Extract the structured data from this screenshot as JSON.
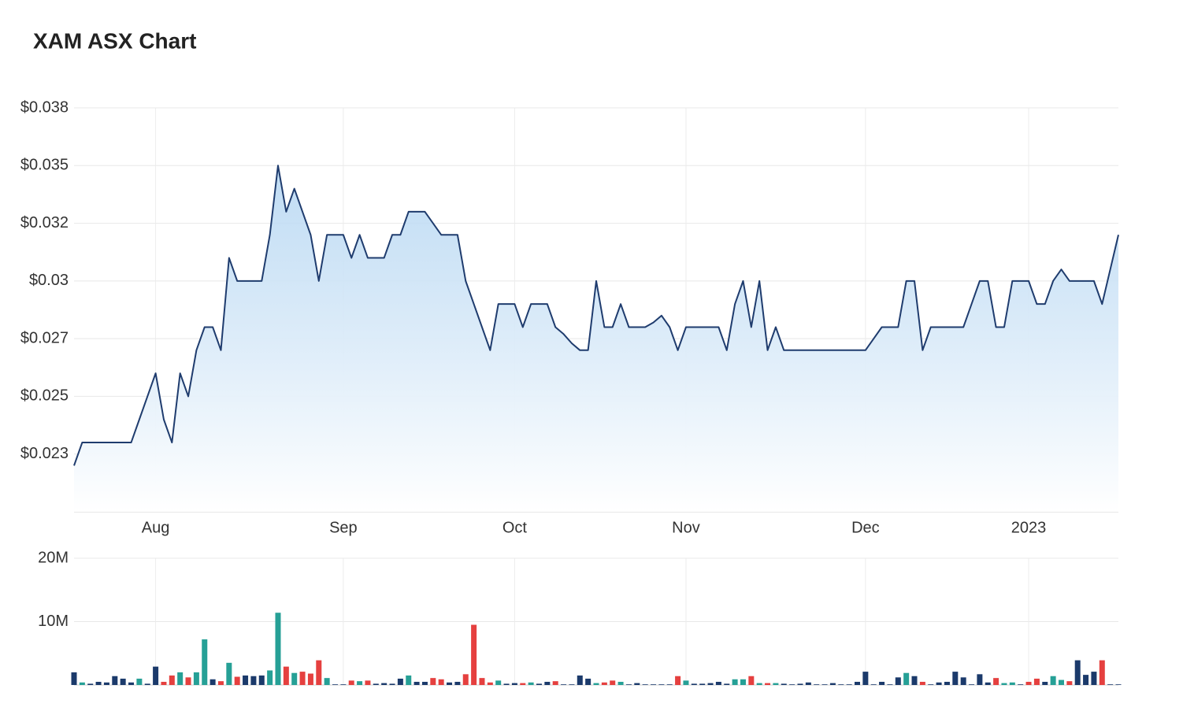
{
  "title": "XAM ASX Chart",
  "chart_data": [
    {
      "type": "area",
      "categories": [
        null,
        null,
        null,
        null,
        null,
        null,
        null,
        null,
        null,
        null,
        "Aug",
        null,
        null,
        null,
        null,
        null,
        null,
        null,
        null,
        null,
        null,
        null,
        null,
        null,
        null,
        null,
        null,
        null,
        null,
        null,
        null,
        null,
        null,
        "Sep",
        null,
        null,
        null,
        null,
        null,
        null,
        null,
        null,
        null,
        null,
        null,
        null,
        null,
        null,
        null,
        null,
        null,
        null,
        null,
        null,
        "Oct",
        null,
        null,
        null,
        null,
        null,
        null,
        null,
        null,
        null,
        null,
        null,
        null,
        null,
        null,
        null,
        null,
        null,
        null,
        null,
        null,
        "Nov",
        null,
        null,
        null,
        null,
        null,
        null,
        null,
        null,
        null,
        null,
        null,
        null,
        null,
        null,
        null,
        null,
        null,
        null,
        null,
        null,
        null,
        "Dec",
        null,
        null,
        null,
        null,
        null,
        null,
        null,
        null,
        null,
        null,
        null,
        null,
        null,
        null,
        null,
        null,
        null,
        null,
        null,
        "2023",
        null,
        null,
        null,
        null,
        null,
        null,
        null,
        null,
        null,
        null,
        null
      ],
      "values": [
        0.022,
        0.023,
        0.023,
        0.023,
        0.023,
        0.023,
        0.023,
        0.023,
        0.024,
        0.025,
        0.026,
        0.024,
        0.023,
        0.026,
        0.025,
        0.027,
        0.028,
        0.028,
        0.027,
        0.031,
        0.03,
        0.03,
        0.03,
        0.03,
        0.032,
        0.035,
        0.033,
        0.034,
        0.033,
        0.032,
        0.03,
        0.032,
        0.032,
        0.032,
        0.031,
        0.032,
        0.031,
        0.031,
        0.031,
        0.032,
        0.032,
        0.033,
        0.033,
        0.033,
        0.0325,
        0.032,
        0.032,
        0.032,
        0.03,
        0.029,
        0.028,
        0.027,
        0.029,
        0.029,
        0.029,
        0.028,
        0.029,
        0.029,
        0.029,
        0.028,
        0.0277,
        0.0273,
        0.027,
        0.027,
        0.03,
        0.028,
        0.028,
        0.029,
        0.028,
        0.028,
        0.028,
        0.0282,
        0.0285,
        0.028,
        0.027,
        0.028,
        0.028,
        0.028,
        0.028,
        0.028,
        0.027,
        0.029,
        0.03,
        0.028,
        0.03,
        0.027,
        0.028,
        0.027,
        0.027,
        0.027,
        0.027,
        0.027,
        0.027,
        0.027,
        0.027,
        0.027,
        0.027,
        0.027,
        0.0275,
        0.028,
        0.028,
        0.028,
        0.03,
        0.03,
        0.027,
        0.028,
        0.028,
        0.028,
        0.028,
        0.028,
        0.029,
        0.03,
        0.03,
        0.028,
        0.028,
        0.03,
        0.03,
        0.03,
        0.029,
        0.029,
        0.03,
        0.0305,
        0.03,
        0.03,
        0.03,
        0.03,
        0.029,
        0.0305,
        0.032
      ],
      "color": "#1f3c6e",
      "fill_color": "#b5d6f2",
      "ylim": [
        0.02,
        0.0375
      ],
      "yticks": [
        {
          "value": 0.0225,
          "label": "$0.023"
        },
        {
          "value": 0.025,
          "label": "$0.025"
        },
        {
          "value": 0.0275,
          "label": "$0.027"
        },
        {
          "value": 0.03,
          "label": "$0.03"
        },
        {
          "value": 0.0325,
          "label": "$0.032"
        },
        {
          "value": 0.035,
          "label": "$0.035"
        },
        {
          "value": 0.0375,
          "label": "$0.038"
        }
      ],
      "grid": true
    },
    {
      "type": "bar",
      "values": [
        2000000,
        400000,
        200000,
        500000,
        400000,
        1400000,
        1000000,
        400000,
        1000000,
        200000,
        2900000,
        500000,
        1500000,
        2000000,
        1200000,
        2000000,
        7200000,
        900000,
        600000,
        3500000,
        1300000,
        1500000,
        1400000,
        1500000,
        2300000,
        11400000,
        2900000,
        1900000,
        2100000,
        1800000,
        3900000,
        1100000,
        100000,
        100000,
        700000,
        600000,
        700000,
        200000,
        300000,
        200000,
        1000000,
        1500000,
        500000,
        500000,
        1100000,
        900000,
        400000,
        500000,
        1700000,
        9500000,
        1100000,
        400000,
        700000,
        200000,
        300000,
        300000,
        400000,
        200000,
        500000,
        600000,
        100000,
        100000,
        1500000,
        1000000,
        300000,
        400000,
        700000,
        500000,
        100000,
        300000,
        100000,
        100000,
        100000,
        100000,
        1400000,
        700000,
        200000,
        200000,
        300000,
        500000,
        200000,
        900000,
        900000,
        1400000,
        300000,
        300000,
        300000,
        200000,
        100000,
        200000,
        400000,
        100000,
        100000,
        300000,
        100000,
        100000,
        500000,
        2100000,
        100000,
        500000,
        100000,
        1200000,
        1900000,
        1400000,
        500000,
        100000,
        400000,
        500000,
        2100000,
        1200000,
        100000,
        1700000,
        400000,
        1100000,
        300000,
        400000,
        100000,
        500000,
        1000000,
        500000,
        1400000,
        800000,
        600000,
        3900000,
        1600000,
        2100000,
        3900000,
        100000,
        100000
      ],
      "colors": [
        "#1b3a6b",
        "#26a096",
        "#1b3a6b",
        "#1b3a6b",
        "#1b3a6b",
        "#1b3a6b",
        "#1b3a6b",
        "#1b3a6b",
        "#26a096",
        "#1b3a6b",
        "#1b3a6b",
        "#e5403f",
        "#e5403f",
        "#26a096",
        "#e5403f",
        "#26a096",
        "#26a096",
        "#1b3a6b",
        "#e5403f",
        "#26a096",
        "#e5403f",
        "#1b3a6b",
        "#1b3a6b",
        "#1b3a6b",
        "#26a096",
        "#26a096",
        "#e5403f",
        "#26a096",
        "#e5403f",
        "#e5403f",
        "#e5403f",
        "#26a096",
        "#1b3a6b",
        "#1b3a6b",
        "#e5403f",
        "#26a096",
        "#e5403f",
        "#1b3a6b",
        "#1b3a6b",
        "#1b3a6b",
        "#1b3a6b",
        "#26a096",
        "#1b3a6b",
        "#1b3a6b",
        "#e5403f",
        "#e5403f",
        "#1b3a6b",
        "#1b3a6b",
        "#e5403f",
        "#e5403f",
        "#e5403f",
        "#e5403f",
        "#26a096",
        "#1b3a6b",
        "#1b3a6b",
        "#e5403f",
        "#26a096",
        "#1b3a6b",
        "#1b3a6b",
        "#e5403f",
        "#1b3a6b",
        "#1b3a6b",
        "#1b3a6b",
        "#1b3a6b",
        "#26a096",
        "#e5403f",
        "#e5403f",
        "#26a096",
        "#1b3a6b",
        "#1b3a6b",
        "#1b3a6b",
        "#1b3a6b",
        "#1b3a6b",
        "#1b3a6b",
        "#e5403f",
        "#26a096",
        "#1b3a6b",
        "#1b3a6b",
        "#1b3a6b",
        "#1b3a6b",
        "#1b3a6b",
        "#26a096",
        "#26a096",
        "#e5403f",
        "#26a096",
        "#e5403f",
        "#26a096",
        "#1b3a6b",
        "#1b3a6b",
        "#1b3a6b",
        "#1b3a6b",
        "#1b3a6b",
        "#1b3a6b",
        "#1b3a6b",
        "#1b3a6b",
        "#1b3a6b",
        "#1b3a6b",
        "#1b3a6b",
        "#1b3a6b",
        "#1b3a6b",
        "#1b3a6b",
        "#1b3a6b",
        "#26a096",
        "#1b3a6b",
        "#e5403f",
        "#1b3a6b",
        "#1b3a6b",
        "#1b3a6b",
        "#1b3a6b",
        "#1b3a6b",
        "#1b3a6b",
        "#1b3a6b",
        "#1b3a6b",
        "#e5403f",
        "#26a096",
        "#26a096",
        "#1b3a6b",
        "#e5403f",
        "#e5403f",
        "#1b3a6b",
        "#26a096",
        "#26a096",
        "#e5403f",
        "#1b3a6b",
        "#1b3a6b",
        "#1b3a6b",
        "#e5403f",
        "#1b3a6b",
        "#1b3a6b"
      ],
      "ylim": [
        0,
        20000000
      ],
      "yticks": [
        {
          "value": 10000000,
          "label": "10M"
        },
        {
          "value": 20000000,
          "label": "20M"
        }
      ],
      "grid": true
    }
  ]
}
